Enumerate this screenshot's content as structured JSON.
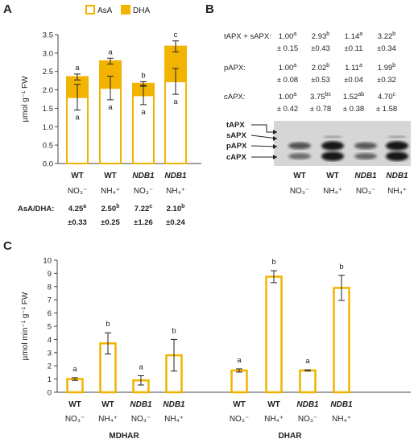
{
  "panels": {
    "a": {
      "letter": "A"
    },
    "b": {
      "letter": "B"
    },
    "c": {
      "letter": "C"
    }
  },
  "chart_data": [
    {
      "id": "A",
      "type": "bar",
      "stacked": true,
      "legend": [
        {
          "name": "AsA",
          "style": "outline",
          "color": "#F2B400"
        },
        {
          "name": "DHA",
          "style": "filled",
          "color": "#F2B400"
        }
      ],
      "legend_position": "top",
      "ylabel": "µmol g⁻¹ FW",
      "ylim": [
        0,
        3.5
      ],
      "yticks": [
        "0.0",
        "0.5",
        "1.0",
        "1.5",
        "2.0",
        "2.5",
        "3.0",
        "3.5"
      ],
      "categories": [
        {
          "genotype": "WT",
          "treatment": "NO₃⁻",
          "italic": false
        },
        {
          "genotype": "WT",
          "treatment": "NH₄⁺",
          "italic": false
        },
        {
          "genotype": "NDB1",
          "treatment": "NO₃⁻",
          "italic": true
        },
        {
          "genotype": "NDB1",
          "treatment": "NH₄⁺",
          "italic": true
        }
      ],
      "asa": [
        1.8,
        2.05,
        1.85,
        2.23
      ],
      "asa_err": [
        0.35,
        0.32,
        0.25,
        0.35
      ],
      "total": [
        2.35,
        2.78,
        2.17,
        3.18
      ],
      "total_err": [
        0.08,
        0.08,
        0.05,
        0.15
      ],
      "letters_total": [
        "a",
        "a",
        "b",
        "c"
      ],
      "letters_asa": [
        "a",
        "a",
        "a",
        "a"
      ],
      "ratio_label": "AsA/DHA:",
      "ratio_values": [
        {
          "value": "4.25",
          "sup": "a",
          "err": "±0.33"
        },
        {
          "value": "2.50",
          "sup": "b",
          "err": "±0.25"
        },
        {
          "value": "7.22",
          "sup": "c",
          "err": "±1.26"
        },
        {
          "value": "2.10",
          "sup": "b",
          "err": "±0.24"
        }
      ]
    },
    {
      "id": "B",
      "type": "table",
      "rows": [
        {
          "label": "tAPX + sAPX:",
          "values": [
            {
              "value": "1.00",
              "sup": "a",
              "err": "± 0.15"
            },
            {
              "value": "2.93",
              "sup": "b",
              "err": "±0.43"
            },
            {
              "value": "1.14",
              "sup": "a",
              "err": "±0.11"
            },
            {
              "value": "3.22",
              "sup": "b",
              "err": "±0.34"
            }
          ]
        },
        {
          "label": "pAPX:",
          "values": [
            {
              "value": "1.00",
              "sup": "a",
              "err": "± 0.08"
            },
            {
              "value": "2.02",
              "sup": "b",
              "err": "±0.53"
            },
            {
              "value": "1.11",
              "sup": "a",
              "err": "±0.04"
            },
            {
              "value": "1.99",
              "sup": "b",
              "err": "±0.32"
            }
          ]
        },
        {
          "label": "cAPX:",
          "values": [
            {
              "value": "1.00",
              "sup": "a",
              "err": "± 0.42"
            },
            {
              "value": "3.75",
              "sup": "bc",
              "err": "± 0.78"
            },
            {
              "value": "1.52",
              "sup": "ab",
              "err": "± 0.38"
            },
            {
              "value": "4.70",
              "sup": "c",
              "err": "± 1.58"
            }
          ]
        }
      ],
      "blot_labels": [
        "tAPX",
        "sAPX",
        "pAPX",
        "cAPX"
      ],
      "blot_lanes": [
        {
          "genotype": "WT",
          "treatment": "NO₃⁻",
          "italic": false
        },
        {
          "genotype": "WT",
          "treatment": "NH₄⁺",
          "italic": false
        },
        {
          "genotype": "NDB1",
          "treatment": "NO₃⁻",
          "italic": true
        },
        {
          "genotype": "NDB1",
          "treatment": "NH₄⁺",
          "italic": true
        }
      ]
    },
    {
      "id": "C",
      "type": "bar",
      "ylabel": "µmol min⁻¹ g⁻¹ FW",
      "ylim": [
        0,
        10
      ],
      "yticks": [
        "0",
        "1",
        "2",
        "3",
        "4",
        "5",
        "6",
        "7",
        "8",
        "9",
        "10"
      ],
      "groups": [
        {
          "name": "MDHAR",
          "categories": [
            {
              "genotype": "WT",
              "treatment": "NO₃⁻",
              "italic": false
            },
            {
              "genotype": "WT",
              "treatment": "NH₄⁺",
              "italic": false
            },
            {
              "genotype": "NDB1",
              "treatment": "NO₃⁻",
              "italic": true
            },
            {
              "genotype": "NDB1",
              "treatment": "NH₄⁺",
              "italic": true
            }
          ],
          "values": [
            1.0,
            3.7,
            0.9,
            2.8
          ],
          "errors": [
            0.1,
            0.8,
            0.35,
            1.2
          ],
          "letters": [
            "a",
            "b",
            "a",
            "b"
          ]
        },
        {
          "name": "DHAR",
          "categories": [
            {
              "genotype": "WT",
              "treatment": "NO₃⁻",
              "italic": false
            },
            {
              "genotype": "WT",
              "treatment": "NH₄⁺",
              "italic": false
            },
            {
              "genotype": "NDB1",
              "treatment": "NO₃⁻",
              "italic": true
            },
            {
              "genotype": "NDB1",
              "treatment": "NH₄⁺",
              "italic": true
            }
          ],
          "values": [
            1.65,
            8.75,
            1.65,
            7.9
          ],
          "errors": [
            0.12,
            0.45,
            0.05,
            0.95
          ],
          "letters": [
            "a",
            "b",
            "a",
            "b"
          ]
        }
      ],
      "bar_color": "#F2B400"
    }
  ]
}
